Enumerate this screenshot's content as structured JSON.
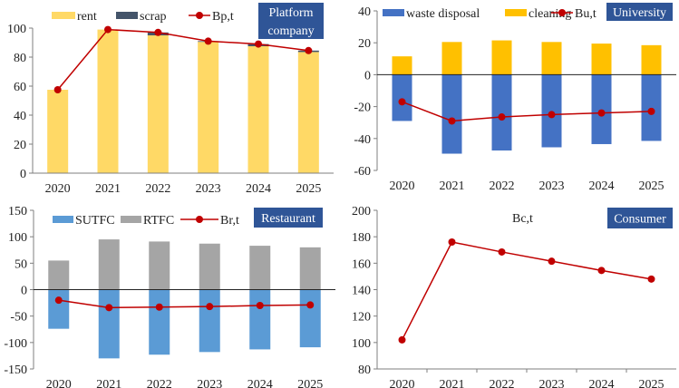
{
  "chart_data": [
    {
      "type": "bar",
      "title": "Platform company",
      "categories": [
        "2020",
        "2021",
        "2022",
        "2023",
        "2024",
        "2025"
      ],
      "ylim": [
        0,
        100
      ],
      "yticks": [
        0,
        20,
        40,
        60,
        80,
        100
      ],
      "stacked": true,
      "series": [
        {
          "name": "rent",
          "kind": "bar",
          "color": "#FFD966",
          "values": [
            57.5,
            99,
            95,
            90.5,
            87.5,
            83.5
          ]
        },
        {
          "name": "scrap",
          "kind": "bar",
          "color": "#44546A",
          "values": [
            0,
            0,
            2,
            0.5,
            1.5,
            1
          ]
        },
        {
          "name": "Bp,t",
          "kind": "line",
          "color": "#C00000",
          "values": [
            57.5,
            99,
            97,
            91,
            89,
            84.5
          ]
        }
      ]
    },
    {
      "type": "bar",
      "title": "University",
      "categories": [
        "2020",
        "2021",
        "2022",
        "2023",
        "2024",
        "2025"
      ],
      "ylim": [
        -60,
        40
      ],
      "yticks": [
        -60,
        -40,
        -20,
        0,
        20,
        40
      ],
      "stacked": true,
      "series": [
        {
          "name": "waste disposal",
          "kind": "bar",
          "color": "#4472C4",
          "values": [
            -29,
            -49.5,
            -47.5,
            -45.5,
            -43.5,
            -41.5
          ]
        },
        {
          "name": "cleaning",
          "kind": "bar",
          "color": "#FFC000",
          "values": [
            11.5,
            20.5,
            21.5,
            20.5,
            19.5,
            18.5
          ]
        },
        {
          "name": "Bu,t",
          "kind": "line",
          "color": "#C00000",
          "values": [
            -17,
            -29,
            -26.5,
            -25,
            -24,
            -23
          ]
        }
      ]
    },
    {
      "type": "bar",
      "title": "Restaurant",
      "categories": [
        "2020",
        "2021",
        "2022",
        "2023",
        "2024",
        "2025"
      ],
      "ylim": [
        -150,
        150
      ],
      "yticks": [
        -150,
        -100,
        -50,
        0,
        50,
        100,
        150
      ],
      "stacked": true,
      "series": [
        {
          "name": "SUTFC",
          "kind": "bar",
          "color": "#5B9BD5",
          "values": [
            -74,
            -130,
            -123,
            -118,
            -113,
            -109
          ]
        },
        {
          "name": "RTFC",
          "kind": "bar",
          "color": "#A5A5A5",
          "values": [
            55,
            95,
            91,
            87,
            83,
            80
          ]
        },
        {
          "name": "Br,t",
          "kind": "line",
          "color": "#C00000",
          "values": [
            -20,
            -34,
            -33,
            -32,
            -30,
            -29
          ]
        }
      ]
    },
    {
      "type": "line",
      "title": "Consumer",
      "categories": [
        "2020",
        "2021",
        "2022",
        "2023",
        "2024",
        "2025"
      ],
      "ylim": [
        80,
        200
      ],
      "yticks": [
        80,
        100,
        120,
        140,
        160,
        180,
        200
      ],
      "stacked": false,
      "series": [
        {
          "name": "Bc,t",
          "kind": "line",
          "color": "#C00000",
          "values": [
            102,
            176,
            168.5,
            161.5,
            154.5,
            148
          ]
        }
      ]
    }
  ],
  "badge_color": "#2F5597"
}
